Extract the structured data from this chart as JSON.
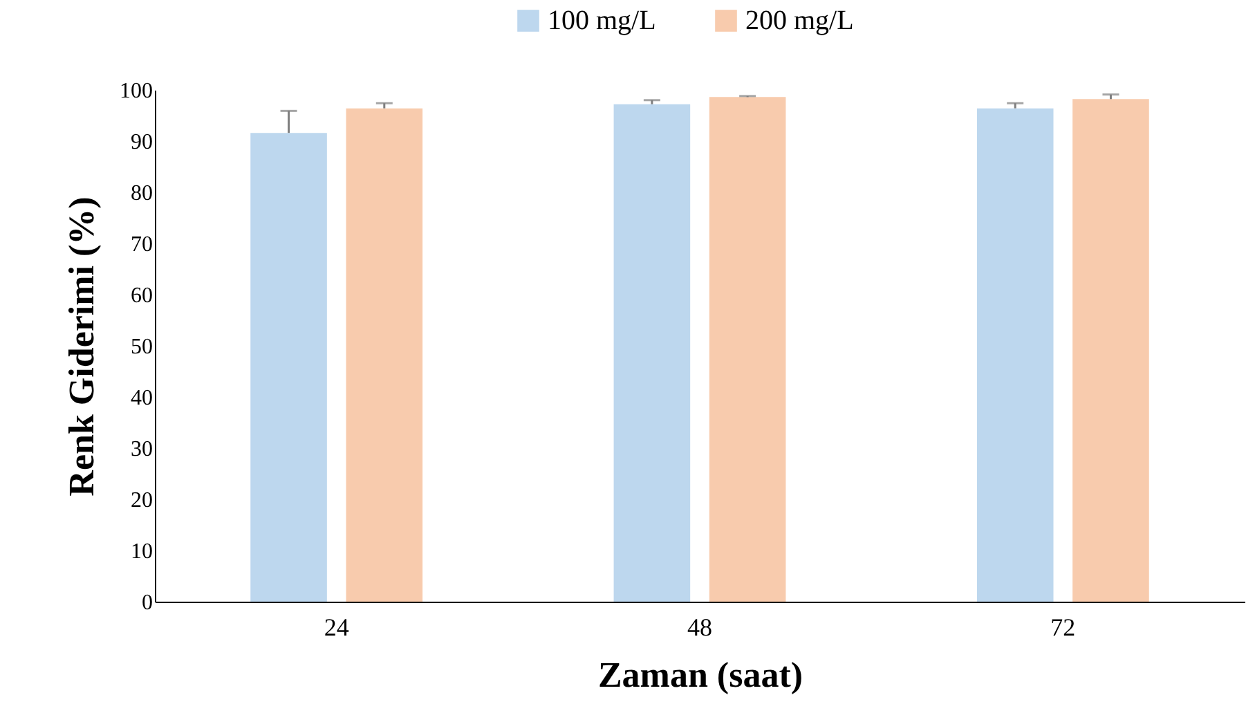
{
  "chart_data": {
    "type": "bar",
    "xlabel": "Zaman (saat)",
    "ylabel": "Renk Giderimi (%)",
    "categories": [
      "24",
      "48",
      "72"
    ],
    "series": [
      {
        "name": "100 mg/L",
        "color": "#bdd7ee",
        "values": [
          91.6,
          97.2,
          96.4
        ],
        "errors": [
          [
            91.6,
            95.9
          ],
          [
            97.2,
            98.0
          ],
          [
            96.4,
            97.4
          ]
        ]
      },
      {
        "name": "200 mg/L",
        "color": "#f8cbad",
        "values": [
          96.4,
          98.6,
          98.2
        ],
        "errors": [
          [
            96.4,
            97.4
          ],
          [
            98.6,
            98.8
          ],
          [
            98.2,
            99.1
          ]
        ]
      }
    ],
    "ylim": [
      0,
      100
    ],
    "yticks": [
      0,
      10,
      20,
      30,
      40,
      50,
      60,
      70,
      80,
      90,
      100
    ],
    "grid": false,
    "legend": "top"
  }
}
